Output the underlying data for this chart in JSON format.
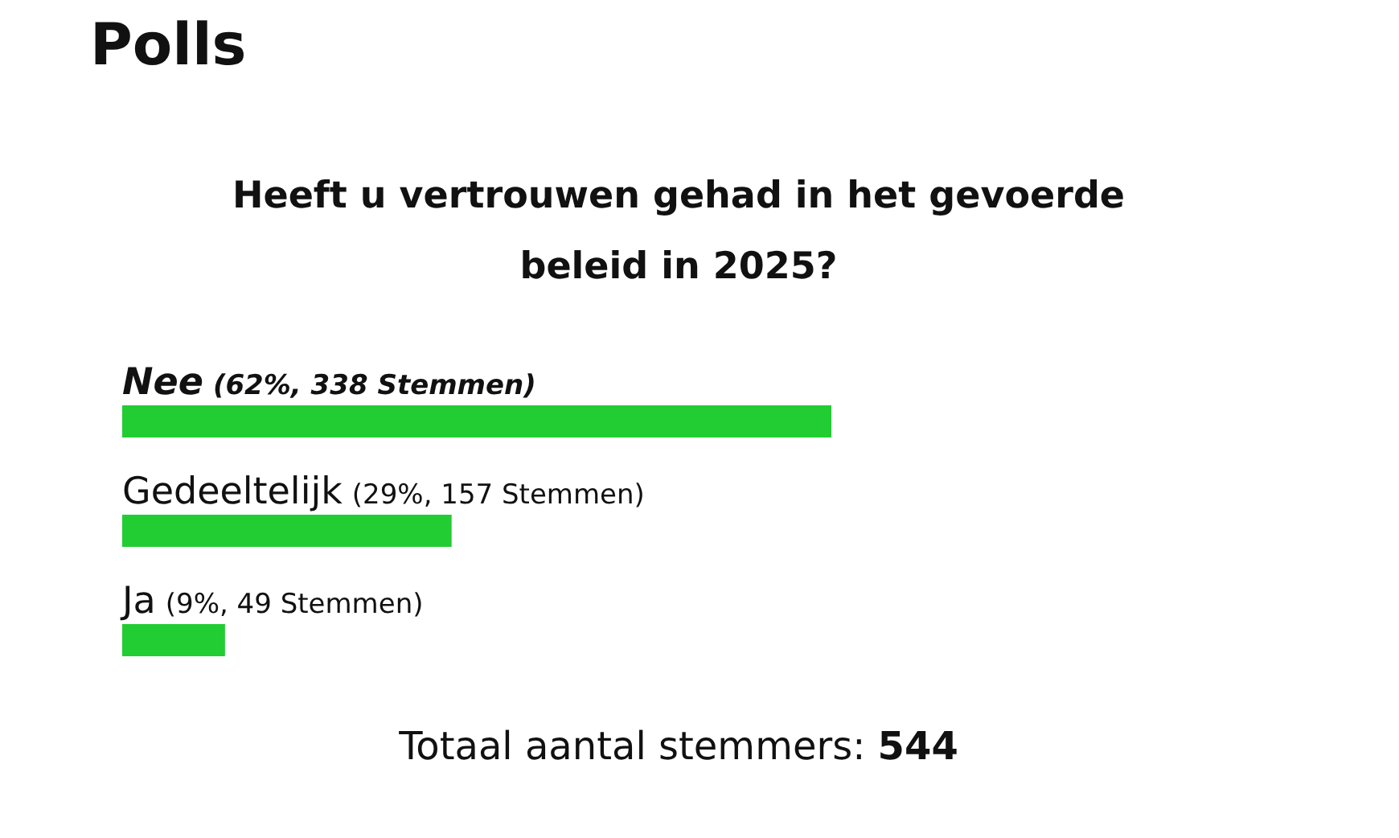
{
  "chart_data": {
    "type": "bar",
    "orientation": "horizontal",
    "title": "Polls",
    "subtitle": "Heeft u vertrouwen gehad in het gevoerde beleid in 2025?",
    "categories": [
      "Nee",
      "Gedeeltelijk",
      "Ja"
    ],
    "values": [
      338,
      157,
      49
    ],
    "value_labels": [
      "(62%, 338 Stemmen)",
      "(29%, 157 Stemmen)",
      "(9%, 49 Stemmen)"
    ],
    "color": "#22cc33",
    "annotations": [
      "Totaal aantal stemmers: 544"
    ]
  }
}
